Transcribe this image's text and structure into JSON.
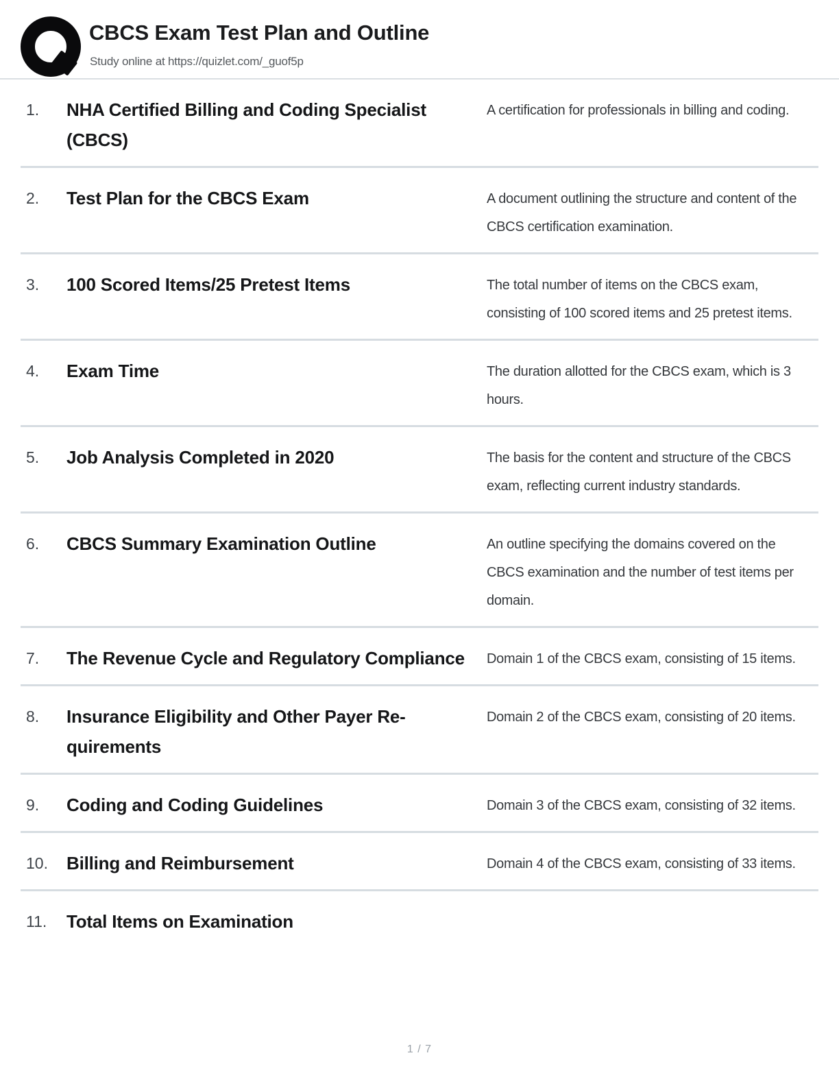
{
  "header": {
    "title": "CBCS Exam Test Plan and Outline",
    "subtitle": "Study online at https://quizlet.com/_guof5p",
    "logo_icon": "quizlet-q-logo"
  },
  "footer": {
    "page_indicator": "1 / 7"
  },
  "colors": {
    "divider": "#d6dce1",
    "term_text": "#151618",
    "definition_text": "#35383c",
    "muted_text": "#9aa1a8"
  },
  "cards": [
    {
      "number": "1.",
      "term": "NHA Certified Billing and Coding Special­ist (CBCS)",
      "definition": "A certification for professionals in billing and coding."
    },
    {
      "number": "2.",
      "term": "Test Plan for the CBCS Exam",
      "definition": "A document outlining the structure and con­tent of the CBCS certification examination."
    },
    {
      "number": "3.",
      "term": "100 Scored Items/25 Pretest Items",
      "definition": "The total number of items on the CBCS exam, consisting of 100 scored items and 25 pretest items."
    },
    {
      "number": "4.",
      "term": "Exam Time",
      "definition": "The duration allotted for the CBCS exam, which is 3 hours."
    },
    {
      "number": "5.",
      "term": "Job Analysis Completed in 2020",
      "definition": "The basis for the content and structure of the CBCS exam, reflecting current industry stan­dards."
    },
    {
      "number": "6.",
      "term": "CBCS Summary Examination Outline",
      "definition": "An outline specifying the domains covered on the CBCS examination and the number of test items per domain."
    },
    {
      "number": "7.",
      "term": "The Revenue Cycle and Regulatory Com­pliance",
      "definition": "Domain 1 of the CBCS exam, consisting of 15 items."
    },
    {
      "number": "8.",
      "term": "Insurance Eligibility and Other Payer Re­quirements",
      "definition": "Domain 2 of the CBCS exam, consisting of 20 items."
    },
    {
      "number": "9.",
      "term": "Coding and Coding Guidelines",
      "definition": "Domain 3 of the CBCS exam, consisting of 32 items."
    },
    {
      "number": "10.",
      "term": "Billing and Reimbursement",
      "definition": "Domain 4 of the CBCS exam, consisting of 33 items."
    },
    {
      "number": "11.",
      "term": "Total Items on Examination",
      "definition": ""
    }
  ]
}
